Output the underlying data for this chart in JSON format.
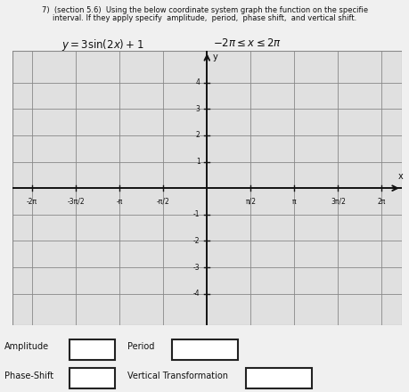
{
  "title_line1": "7)  (section 5.6)  Using the below coordinate system graph the function on the specifie",
  "title_line2": "interval. If they apply specify  amplitude,  period,  phase shift,  and vertical shift.",
  "background_color": "#f0f0f0",
  "graph_bg_color": "#e0e0e0",
  "grid_color": "#888888",
  "axis_color": "#111111",
  "text_color": "#111111",
  "xlim": [
    -7.0,
    7.0
  ],
  "ylim": [
    -5.2,
    5.2
  ],
  "xticks_vals": [
    -6.283185307,
    -4.71238898,
    -3.141592654,
    -1.570796327,
    1.570796327,
    3.141592654,
    4.71238898,
    6.283185307
  ],
  "xticks_labels": [
    "-2π",
    "-3π/2",
    "-π",
    "-π/2",
    "π/2",
    "π",
    "3π/2",
    "2π"
  ],
  "yticks_vals": [
    -4,
    -3,
    -2,
    -1,
    1,
    2,
    3,
    4
  ],
  "yticks_labels": [
    "-4",
    "-3",
    "-2",
    "-1",
    "1",
    "2",
    "3",
    "4"
  ],
  "amplitude_label": "Amplitude",
  "period_label": "Period",
  "phase_shift_label": "Phase-Shift",
  "vert_transform_label": "Vertical Transformation",
  "box_color": "#ffffff",
  "box_edge_color": "#222222"
}
